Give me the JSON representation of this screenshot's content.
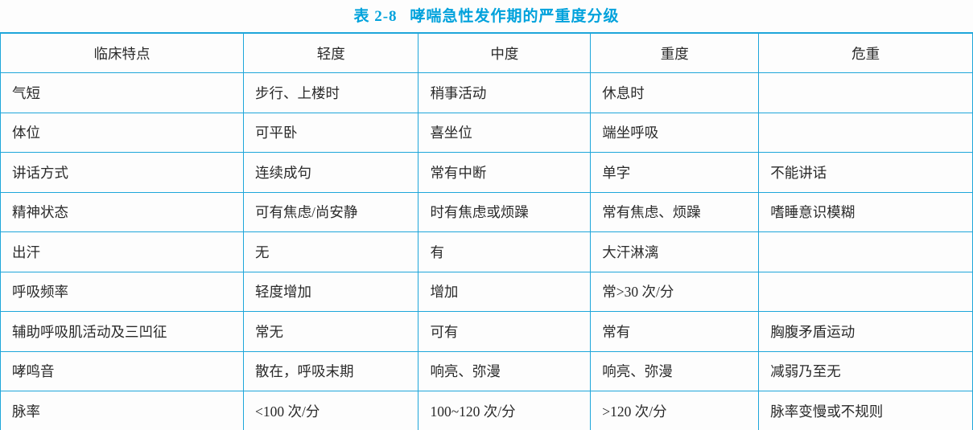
{
  "title": {
    "number": "表 2-8",
    "caption": "哮喘急性发作期的严重度分级"
  },
  "colors": {
    "accent_border": "#1ea6da",
    "title_text": "#00a2dc",
    "body_text": "#2a2a2a"
  },
  "table": {
    "headers": [
      "临床特点",
      "轻度",
      "中度",
      "重度",
      "危重"
    ],
    "rows": [
      [
        "气短",
        "步行、上楼时",
        "稍事活动",
        "休息时",
        ""
      ],
      [
        "体位",
        "可平卧",
        "喜坐位",
        "端坐呼吸",
        ""
      ],
      [
        "讲话方式",
        "连续成句",
        "常有中断",
        "单字",
        "不能讲话"
      ],
      [
        "精神状态",
        "可有焦虑/尚安静",
        "时有焦虑或烦躁",
        "常有焦虑、烦躁",
        "嗜睡意识模糊"
      ],
      [
        "出汗",
        "无",
        "有",
        "大汗淋漓",
        ""
      ],
      [
        "呼吸频率",
        "轻度增加",
        "增加",
        "常>30 次/分",
        ""
      ],
      [
        "辅助呼吸肌活动及三凹征",
        "常无",
        "可有",
        "常有",
        "胸腹矛盾运动"
      ],
      [
        "哮鸣音",
        "散在，呼吸末期",
        "响亮、弥漫",
        "响亮、弥漫",
        "减弱乃至无"
      ],
      [
        "脉率",
        "<100 次/分",
        "100~120 次/分",
        ">120 次/分",
        "脉率变慢或不规则"
      ]
    ]
  }
}
